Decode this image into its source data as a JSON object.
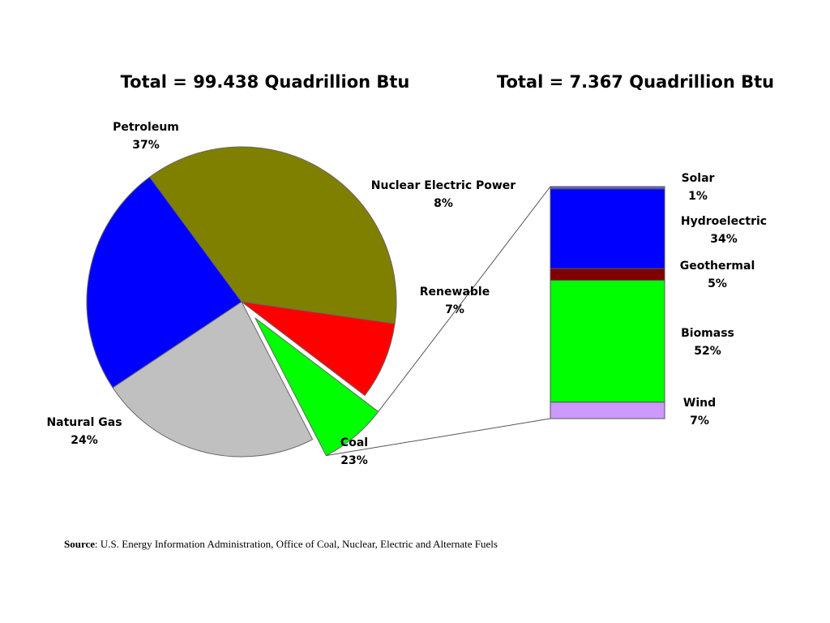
{
  "chart_data": [
    {
      "type": "pie",
      "title": "Total = 99.438 Quadrillion Btu",
      "slices": [
        {
          "label": "Petroleum",
          "value": 37,
          "value_label": "37%",
          "color": "#808000"
        },
        {
          "label": "Nuclear Electric Power",
          "value": 8,
          "value_label": "8%",
          "color": "#ff0000"
        },
        {
          "label": "Renewable",
          "value": 7,
          "value_label": "7%",
          "color": "#00ff00",
          "exploded": true
        },
        {
          "label": "Coal",
          "value": 23,
          "value_label": "23%",
          "color": "#c0c0c0"
        },
        {
          "label": "Natural Gas",
          "value": 24,
          "value_label": "24%",
          "color": "#0000ff"
        }
      ]
    },
    {
      "type": "bar",
      "stacked": true,
      "title": "Total = 7.367 Quadrillion Btu",
      "segments": [
        {
          "label": "Solar",
          "value": 1,
          "value_label": "1%",
          "color": "#6666cc"
        },
        {
          "label": "Hydroelectric",
          "value": 34,
          "value_label": "34%",
          "color": "#0000ff"
        },
        {
          "label": "Geothermal",
          "value": 5,
          "value_label": "5%",
          "color": "#800000"
        },
        {
          "label": "Biomass",
          "value": 52,
          "value_label": "52%",
          "color": "#00ff00"
        },
        {
          "label": "Wind",
          "value": 7,
          "value_label": "7%",
          "color": "#cc99ff"
        }
      ]
    }
  ],
  "source": {
    "label": "Source",
    "text": ": U.S. Energy Information Administration, Office of Coal, Nuclear, Electric and Alternate Fuels"
  }
}
